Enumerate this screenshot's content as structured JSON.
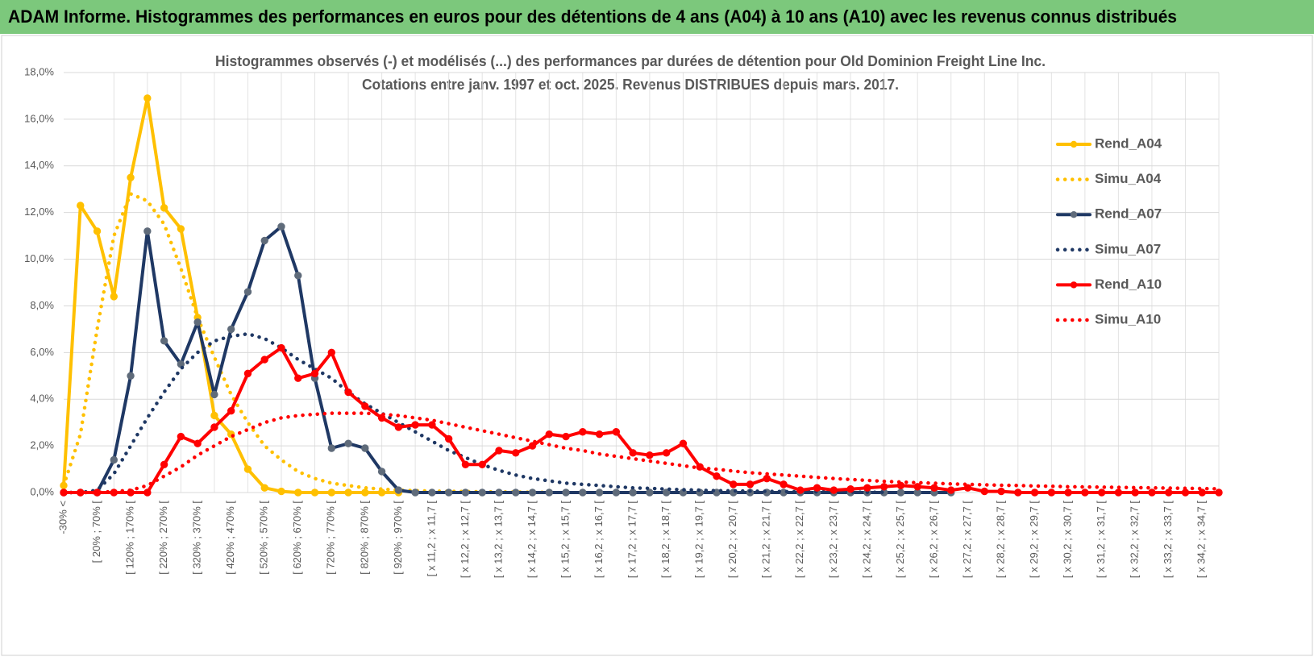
{
  "header": {
    "title": "ADAM Informe. Histogrammes des performances en euros pour des détentions de 4 ans (A04) à 10 ans (A10) avec les revenus connus distribués"
  },
  "chart_data": {
    "type": "line",
    "title": [
      "Histogrammes observés (-) et modélisés (...) des performances par durées de détention pour Old Dominion Freight Line Inc.",
      "Cotations entre janv. 1997 et oct. 2025.  Revenus DISTRIBUES depuis mars. 2017."
    ],
    "categories": [
      "-30% <",
      null,
      "[ 20% ; 70% [",
      null,
      "[ 120% ; 170% [",
      null,
      "[ 220% ; 270% [",
      null,
      "[ 320% ; 370% [",
      null,
      "[ 420% ; 470% [",
      null,
      "[ 520% ; 570% [",
      null,
      "[ 620% ; 670% [",
      null,
      "[ 720% ; 770% [",
      null,
      "[ 820% ; 870% [",
      null,
      "[ 920% ; 970% [",
      null,
      "[ x 11,2 ; x 11,7 [",
      null,
      "[ x 12,2 ; x 12,7 [",
      null,
      "[ x 13,2 ; x 13,7 [",
      null,
      "[ x 14,2 ; x 14,7 [",
      null,
      "[ x 15,2 ; x 15,7 [",
      null,
      "[ x 16,2 ; x 16,7 [",
      null,
      "[ x 17,2 ; x 17,7 [",
      null,
      "[ x 18,2 ; x 18,7 [",
      null,
      "[ x 19,2 ; x 19,7 [",
      null,
      "[ x 20,2 ; x 20,7 [",
      null,
      "[ x 21,2 ; x 21,7 [",
      null,
      "[ x 22,2 ; x 22,7 [",
      null,
      "[ x 23,2 ; x 23,7 [",
      null,
      "[ x 24,2 ; x 24,7 [",
      null,
      "[ x 25,2 ; x 25,7 [",
      null,
      "[ x 26,2 ; x 26,7 [",
      null,
      "[ x 27,2 ; x 27,7 [",
      null,
      "[ x 28,2 ; x 28,7 [",
      null,
      "[ x 29,2 ; x 29,7 [",
      null,
      "[ x 30,2 ; x 30,7 [",
      null,
      "[ x 31,2 ; x 31,7 [",
      null,
      "[ x 32,2 ; x 32,7 [",
      null,
      "[ x 33,2 ; x 33,7 [",
      null,
      "[ x 34,2 ; x 34,7 [",
      null
    ],
    "ylim": [
      0,
      18
    ],
    "yticks": [
      {
        "value": 0,
        "label": "0,0%"
      },
      {
        "value": 2,
        "label": "2,0%"
      },
      {
        "value": 4,
        "label": "4,0%"
      },
      {
        "value": 6,
        "label": "6,0%"
      },
      {
        "value": 8,
        "label": "8,0%"
      },
      {
        "value": 10,
        "label": "10,0%"
      },
      {
        "value": 12,
        "label": "12,0%"
      },
      {
        "value": 14,
        "label": "14,0%"
      },
      {
        "value": 16,
        "label": "16,0%"
      },
      {
        "value": 18,
        "label": "18,0%"
      }
    ],
    "grid": true,
    "legend": "right",
    "series": [
      {
        "name": "Rend_A04",
        "color": "#ffc000",
        "line_style": "solid",
        "markers": true,
        "values": [
          0.3,
          12.3,
          11.2,
          8.4,
          13.5,
          16.9,
          12.2,
          11.3,
          7.5,
          3.3,
          2.5,
          1.0,
          0.2,
          0.05,
          0,
          0,
          0,
          0,
          0,
          0,
          0,
          null,
          null,
          null,
          null,
          null,
          null,
          null,
          null,
          null,
          null,
          null,
          null,
          null,
          null,
          null,
          null,
          null,
          null,
          null,
          null,
          null,
          null,
          null,
          null,
          null,
          null,
          null,
          null,
          null,
          null,
          null,
          null,
          null,
          null,
          null,
          null,
          null,
          null,
          null,
          null,
          null,
          null,
          null,
          null,
          null,
          null,
          null,
          null,
          null
        ]
      },
      {
        "name": "Simu_A04",
        "color": "#ffc000",
        "line_style": "dotted",
        "markers": false,
        "values": [
          0.3,
          2.5,
          7,
          11,
          12.8,
          12.5,
          11.5,
          9.6,
          7.5,
          5.8,
          4.2,
          3.0,
          2.0,
          1.4,
          0.9,
          0.6,
          0.4,
          0.3,
          0.2,
          0.15,
          0.1,
          0.08,
          0.06,
          0.05,
          0.04,
          0.03,
          0.02,
          0.02,
          0.01,
          0.01,
          null,
          null,
          null,
          null,
          null,
          null,
          null,
          null,
          null,
          null,
          null,
          null,
          null,
          null,
          null,
          null,
          null,
          null,
          null,
          null,
          null,
          null,
          null,
          null,
          null,
          null,
          null,
          null,
          null,
          null,
          null,
          null,
          null,
          null,
          null,
          null,
          null,
          null,
          null,
          null
        ]
      },
      {
        "name": "Rend_A07",
        "color": "#1f3864",
        "marker_color": "#5f6b7a",
        "line_style": "solid",
        "markers": true,
        "values": [
          0,
          0,
          0,
          1.4,
          5.0,
          11.2,
          6.5,
          5.5,
          7.3,
          4.2,
          7.0,
          8.6,
          10.8,
          11.4,
          9.3,
          4.9,
          1.9,
          2.1,
          1.9,
          0.9,
          0.1,
          0,
          0,
          0,
          0,
          0,
          0,
          0,
          0,
          0,
          0,
          0,
          0,
          0,
          0,
          0,
          0,
          0,
          0,
          0,
          0,
          0,
          0,
          0,
          0,
          0,
          0,
          0,
          0,
          0,
          0,
          0,
          0,
          0,
          null,
          null,
          null,
          null,
          null,
          null,
          null,
          null,
          null,
          null,
          null,
          null,
          null,
          null,
          null,
          null
        ]
      },
      {
        "name": "Simu_A07",
        "color": "#1f3864",
        "line_style": "dotted",
        "markers": false,
        "values": [
          0,
          0,
          0.1,
          0.8,
          2.0,
          3.2,
          4.3,
          5.3,
          6.0,
          6.5,
          6.7,
          6.8,
          6.6,
          6.2,
          5.7,
          5.3,
          4.9,
          4.3,
          3.8,
          3.4,
          3.0,
          2.6,
          2.2,
          1.8,
          1.5,
          1.2,
          0.95,
          0.75,
          0.6,
          0.5,
          0.4,
          0.35,
          0.3,
          0.25,
          0.2,
          0.18,
          0.15,
          0.12,
          0.1,
          0.08,
          0.07,
          0.06,
          0.05,
          0.04,
          0.03,
          0.03,
          0.02,
          0.02,
          0.01,
          0.01,
          null,
          null,
          null,
          null,
          null,
          null,
          null,
          null,
          null,
          null,
          null,
          null,
          null,
          null,
          null,
          null,
          null,
          null,
          null,
          null
        ]
      },
      {
        "name": "Rend_A10",
        "color": "#ff0000",
        "line_style": "solid",
        "markers": true,
        "values": [
          0,
          0,
          0,
          0,
          0,
          0,
          1.2,
          2.4,
          2.1,
          2.8,
          3.5,
          5.1,
          5.7,
          6.2,
          4.9,
          5.1,
          6.0,
          4.3,
          3.7,
          3.2,
          2.8,
          2.9,
          2.9,
          2.3,
          1.2,
          1.2,
          1.8,
          1.7,
          2.0,
          2.5,
          2.4,
          2.6,
          2.5,
          2.6,
          1.7,
          1.6,
          1.7,
          2.1,
          1.1,
          0.7,
          0.35,
          0.35,
          0.6,
          0.35,
          0.1,
          0.2,
          0.1,
          0.15,
          0.2,
          0.25,
          0.3,
          0.25,
          0.2,
          0.1,
          0.2,
          0.05,
          0.05,
          0,
          0,
          0,
          0,
          0,
          0,
          0,
          0,
          0,
          0,
          0,
          0,
          0
        ]
      },
      {
        "name": "Simu_A10",
        "color": "#ff0000",
        "line_style": "dotted",
        "markers": false,
        "values": [
          0,
          0,
          0,
          0.05,
          0.1,
          0.3,
          0.7,
          1.1,
          1.6,
          2.0,
          2.4,
          2.7,
          3.0,
          3.2,
          3.3,
          3.35,
          3.4,
          3.4,
          3.4,
          3.35,
          3.3,
          3.2,
          3.1,
          2.95,
          2.8,
          2.65,
          2.5,
          2.35,
          2.2,
          2.05,
          1.9,
          1.8,
          1.65,
          1.55,
          1.45,
          1.35,
          1.25,
          1.15,
          1.05,
          1.0,
          0.92,
          0.85,
          0.8,
          0.75,
          0.7,
          0.65,
          0.6,
          0.56,
          0.52,
          0.48,
          0.45,
          0.42,
          0.4,
          0.37,
          0.35,
          0.33,
          0.31,
          0.3,
          0.28,
          0.27,
          0.25,
          0.24,
          0.23,
          0.22,
          0.21,
          0.2,
          0.19,
          0.18,
          0.17,
          0.16
        ]
      }
    ]
  }
}
